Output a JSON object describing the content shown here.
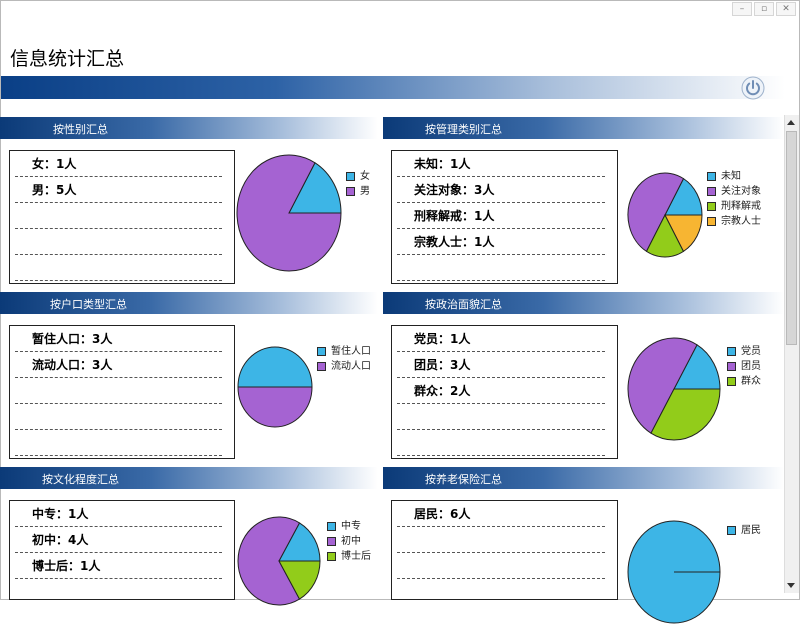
{
  "window": {
    "buttons": [
      "–",
      "▫",
      "✕"
    ]
  },
  "page_title": "信息统计汇总",
  "colors": {
    "blue": "#3db5e6",
    "purple": "#a563d2",
    "green": "#92cc1a",
    "orange": "#f7b532"
  },
  "sections": [
    {
      "title": "按性别汇总",
      "rows": [
        "女：1人",
        "男：5人"
      ],
      "legend": [
        {
          "label": "女",
          "color": "#3db5e6"
        },
        {
          "label": "男",
          "color": "#a563d2"
        }
      ],
      "values": [
        1,
        5
      ]
    },
    {
      "title": "按管理类别汇总",
      "rows": [
        "未知：1人",
        "关注对象：3人",
        "刑释解戒：1人",
        "宗教人士：1人"
      ],
      "legend": [
        {
          "label": "未知",
          "color": "#3db5e6"
        },
        {
          "label": "关注对象",
          "color": "#a563d2"
        },
        {
          "label": "刑释解戒",
          "color": "#92cc1a"
        },
        {
          "label": "宗教人士",
          "color": "#f7b532"
        }
      ],
      "values": [
        1,
        3,
        1,
        1
      ]
    },
    {
      "title": "按户口类型汇总",
      "rows": [
        "暂住人口：3人",
        "流动人口：3人"
      ],
      "legend": [
        {
          "label": "暂住人口",
          "color": "#3db5e6"
        },
        {
          "label": "流动人口",
          "color": "#a563d2"
        }
      ],
      "values": [
        3,
        3
      ]
    },
    {
      "title": "按政治面貌汇总",
      "rows": [
        "党员：1人",
        "团员：3人",
        "群众：2人"
      ],
      "legend": [
        {
          "label": "党员",
          "color": "#3db5e6"
        },
        {
          "label": "团员",
          "color": "#a563d2"
        },
        {
          "label": "群众",
          "color": "#92cc1a"
        }
      ],
      "values": [
        1,
        3,
        2
      ]
    },
    {
      "title": "按文化程度汇总",
      "rows": [
        "中专：1人",
        "初中：4人",
        "博士后：1人"
      ],
      "legend": [
        {
          "label": "中专",
          "color": "#3db5e6"
        },
        {
          "label": "初中",
          "color": "#a563d2"
        },
        {
          "label": "博士后",
          "color": "#92cc1a"
        }
      ],
      "values": [
        1,
        4,
        1
      ]
    },
    {
      "title": "按养老保险汇总",
      "rows": [
        "居民：6人"
      ],
      "legend": [
        {
          "label": "居民",
          "color": "#3db5e6"
        }
      ],
      "values": [
        6
      ]
    }
  ]
}
